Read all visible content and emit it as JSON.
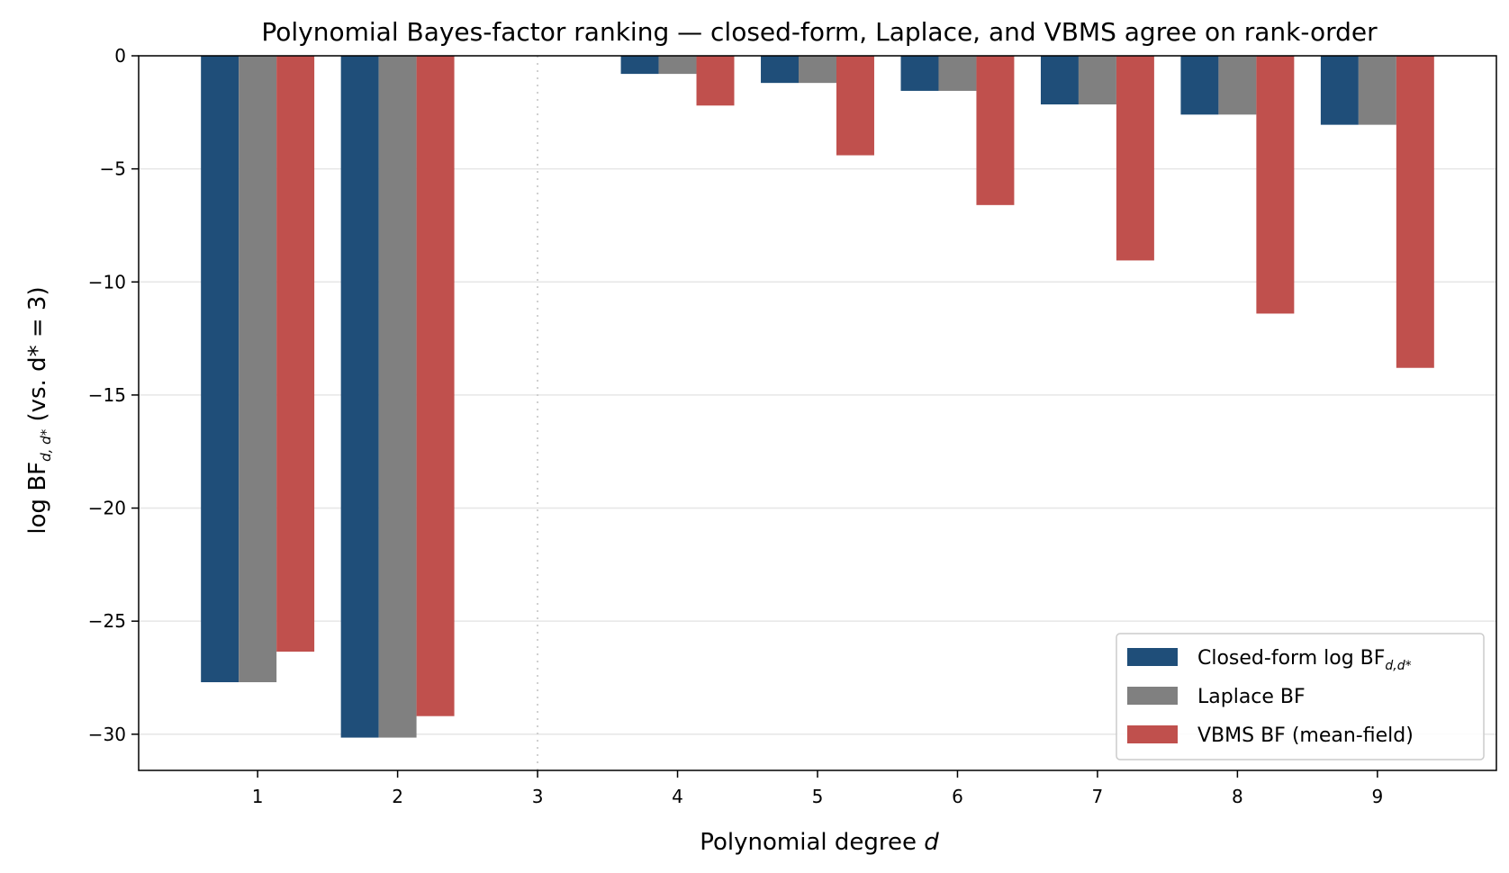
{
  "chart_data": {
    "type": "bar",
    "title": "Polynomial Bayes-factor ranking — closed-form, Laplace, and VBMS agree on rank-order",
    "xlabel": {
      "main": "Polynomial degree ",
      "var": "d"
    },
    "ylabel": {
      "pre": "log BF",
      "sub": "d, d*",
      "post": " (vs. d* = 3)"
    },
    "categories": [
      "1",
      "2",
      "3",
      "4",
      "5",
      "6",
      "7",
      "8",
      "9"
    ],
    "x": [
      1,
      2,
      3,
      4,
      5,
      6,
      7,
      8,
      9
    ],
    "reference_degree": 3,
    "ylim": [
      -31.6,
      0
    ],
    "xlim": [
      0.15,
      9.85
    ],
    "yticks": [
      0,
      -5,
      -10,
      -15,
      -20,
      -25,
      -30
    ],
    "ytick_labels": [
      "0",
      "−5",
      "−10",
      "−15",
      "−20",
      "−25",
      "−30"
    ],
    "grid": "y",
    "legend_position": "lower-right",
    "series": [
      {
        "name": "Closed-form log BF",
        "name_sub": "d,d*",
        "color": "#1f4e79",
        "values": [
          -27.7,
          -30.15,
          0,
          -0.8,
          -1.2,
          -1.55,
          -2.15,
          -2.6,
          -3.05
        ]
      },
      {
        "name": "Laplace BF",
        "color": "#808080",
        "values": [
          -27.7,
          -30.15,
          0,
          -0.8,
          -1.2,
          -1.55,
          -2.15,
          -2.6,
          -3.05
        ]
      },
      {
        "name": "VBMS BF (mean-field)",
        "color": "#c0504d",
        "values": [
          -26.35,
          -29.2,
          0,
          -2.2,
          -4.4,
          -6.6,
          -9.05,
          -11.4,
          -13.8
        ]
      }
    ]
  }
}
